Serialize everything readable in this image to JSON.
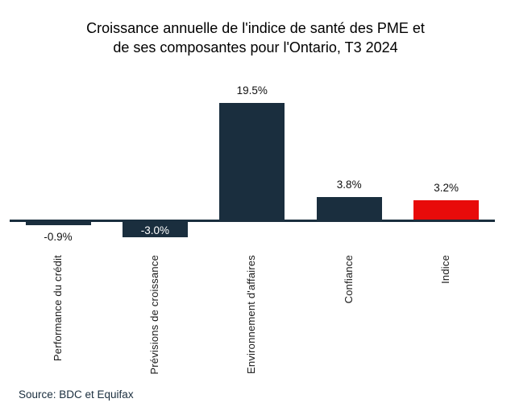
{
  "title": {
    "line1": "Croissance annuelle de l'indice de santé des PME et",
    "line2": "de ses composantes pour l'Ontario, T3 2024"
  },
  "source": "Source: BDC et Equifax",
  "colors": {
    "bar_primary": "#1a2e3e",
    "bar_highlight": "#e80b0a",
    "axis": "#1a2e3e",
    "title_text": "#000000",
    "label_outside": "#111111",
    "label_inside": "#ffffff",
    "source_text": "#1a2e3e"
  },
  "chart_data": {
    "type": "bar",
    "title": "Croissance annuelle de l'indice de santé des PME et de ses composantes pour l'Ontario, T3 2024",
    "categories": [
      "Performance du crédit",
      "Prévisions de croissance",
      "Environnement d'affaires",
      "Confiance",
      "Indice"
    ],
    "values": [
      -0.9,
      -3.0,
      19.5,
      3.8,
      3.2
    ],
    "value_labels": [
      "-0.9%",
      "-3.0%",
      "19.5%",
      "3.8%",
      "3.2%"
    ],
    "bar_colors": [
      "#1a2e3e",
      "#1a2e3e",
      "#1a2e3e",
      "#1a2e3e",
      "#e80b0a"
    ],
    "xlabel": "",
    "ylabel": "",
    "ylim": [
      -4,
      21
    ],
    "grid": false,
    "legend": false,
    "x_tick_rotation": 90,
    "y_axis_visible": false,
    "source": "Source: BDC et Equifax"
  }
}
